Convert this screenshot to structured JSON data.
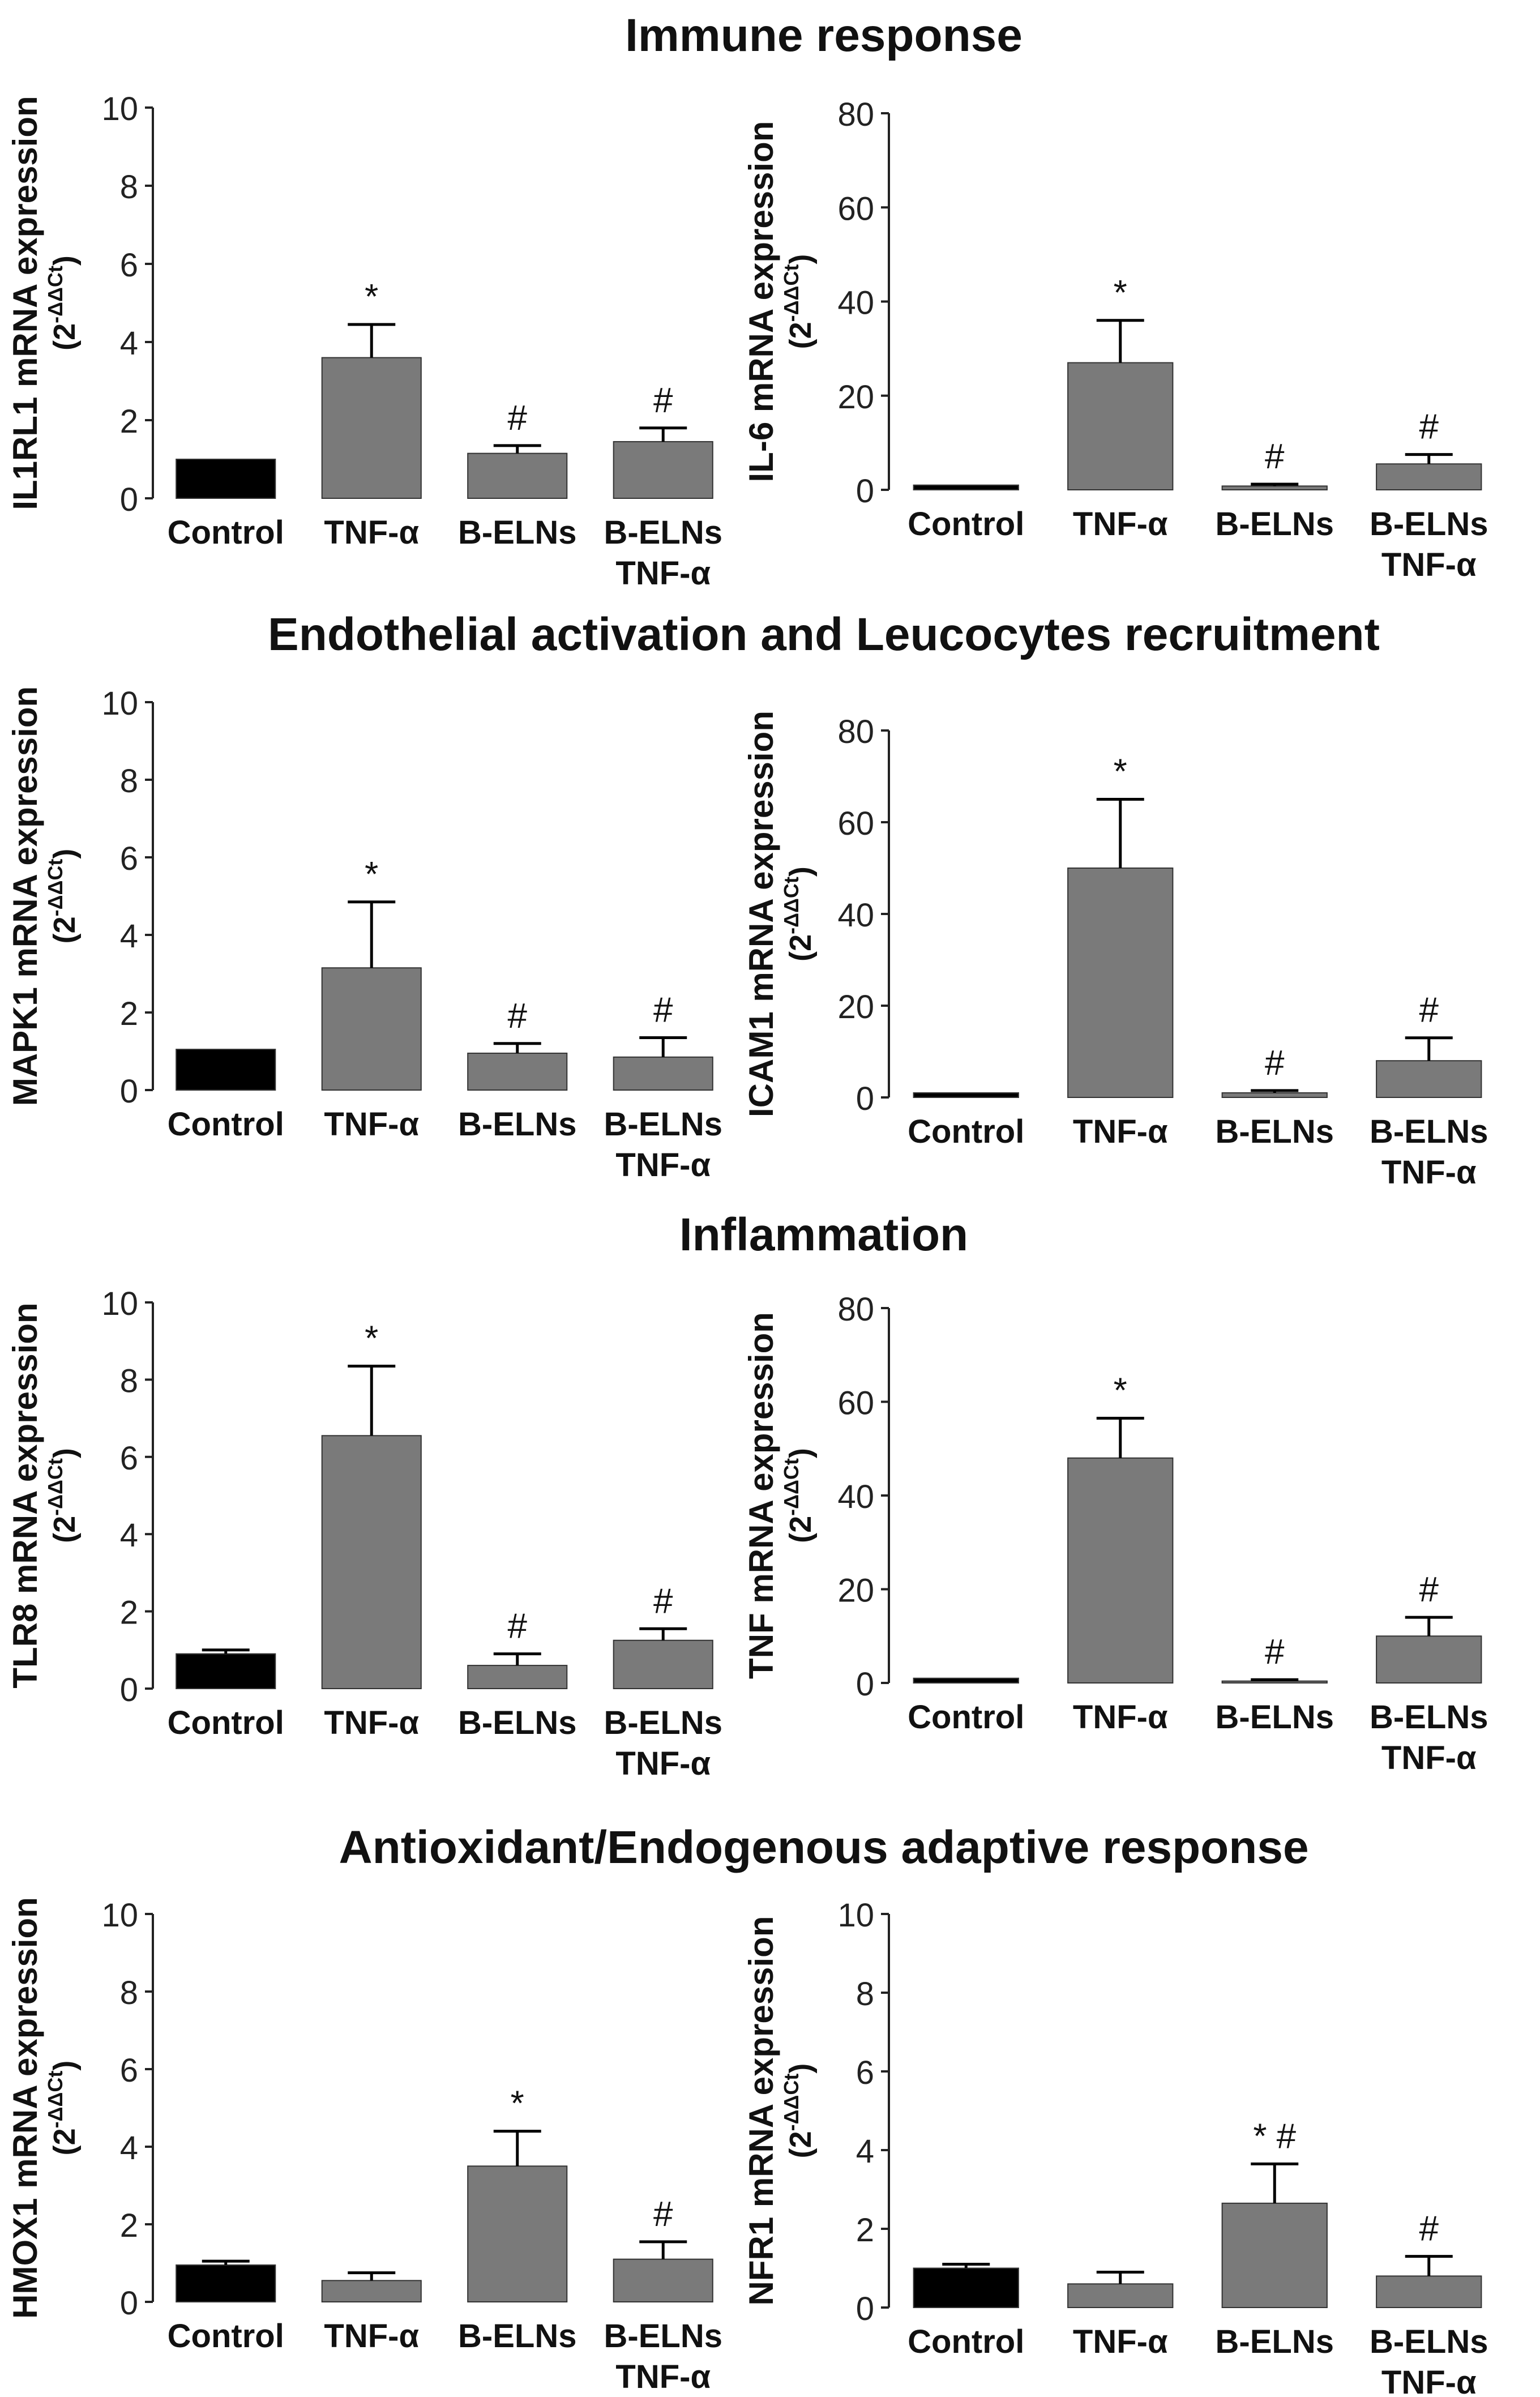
{
  "sections": [
    {
      "title": "Immune response"
    },
    {
      "title": "Endothelial activation and Leucocytes recruitment"
    },
    {
      "title": "Inflammation"
    },
    {
      "title": "Antioxidant/Endogenous adaptive response"
    }
  ],
  "colors": {
    "control": "#000000",
    "treated": "#7a7a7a",
    "error": "#000000"
  },
  "chart_data": [
    {
      "type": "bar",
      "section": "Immune response",
      "ylabel": "IL1RL1 mRNA expression",
      "ylabel_unit": "(2^-ΔΔCt)",
      "categories": [
        "Control",
        "TNF-α",
        "B-ELNs",
        "B-ELNs|TNF-α"
      ],
      "values": [
        1.0,
        3.6,
        1.15,
        1.45
      ],
      "errors": [
        0.0,
        0.85,
        0.2,
        0.35
      ],
      "annotations": [
        "",
        "*",
        "#",
        "#"
      ],
      "ylim": [
        0,
        10
      ],
      "yticks": [
        0,
        2,
        4,
        6,
        8,
        10
      ]
    },
    {
      "type": "bar",
      "section": "Immune response",
      "ylabel": "IL-6 mRNA expression",
      "ylabel_unit": "(2^-ΔΔCt)",
      "categories": [
        "Control",
        "TNF-α",
        "B-ELNs",
        "B-ELNs|TNF-α"
      ],
      "values": [
        1.0,
        27,
        0.8,
        5.5
      ],
      "errors": [
        0.0,
        9,
        0.4,
        2.0
      ],
      "annotations": [
        "",
        "*",
        "#",
        "#"
      ],
      "ylim": [
        0,
        80
      ],
      "yticks": [
        0,
        20,
        40,
        60,
        80
      ]
    },
    {
      "type": "bar",
      "section": "Endothelial activation and Leucocytes recruitment",
      "ylabel": "MAPK1 mRNA expression",
      "ylabel_unit": "(2^-ΔΔCt)",
      "categories": [
        "Control",
        "TNF-α",
        "B-ELNs",
        "B-ELNs|TNF-α"
      ],
      "values": [
        1.05,
        3.15,
        0.95,
        0.85
      ],
      "errors": [
        0.0,
        1.7,
        0.25,
        0.5
      ],
      "annotations": [
        "",
        "*",
        "#",
        "#"
      ],
      "ylim": [
        0,
        10
      ],
      "yticks": [
        0,
        2,
        4,
        6,
        8,
        10
      ]
    },
    {
      "type": "bar",
      "section": "Endothelial activation and Leucocytes recruitment",
      "ylabel": "ICAM1 mRNA expression",
      "ylabel_unit": "(2^-ΔΔCt)",
      "categories": [
        "Control",
        "TNF-α",
        "B-ELNs",
        "B-ELNs|TNF-α"
      ],
      "values": [
        1.0,
        50,
        1.0,
        8
      ],
      "errors": [
        0.0,
        15,
        0.5,
        5
      ],
      "annotations": [
        "",
        "*",
        "#",
        "#"
      ],
      "ylim": [
        0,
        80
      ],
      "yticks": [
        0,
        20,
        40,
        60,
        80
      ]
    },
    {
      "type": "bar",
      "section": "Inflammation",
      "ylabel": "TLR8 mRNA expression",
      "ylabel_unit": "(2^-ΔΔCt)",
      "categories": [
        "Control",
        "TNF-α",
        "B-ELNs",
        "B-ELNs|TNF-α"
      ],
      "values": [
        0.9,
        6.55,
        0.6,
        1.25
      ],
      "errors": [
        0.1,
        1.8,
        0.3,
        0.3
      ],
      "annotations": [
        "",
        "*",
        "#",
        "#"
      ],
      "ylim": [
        0,
        10
      ],
      "yticks": [
        0,
        2,
        4,
        6,
        8,
        10
      ]
    },
    {
      "type": "bar",
      "section": "Inflammation",
      "ylabel": "TNF mRNA expression",
      "ylabel_unit": "(2^-ΔΔCt)",
      "categories": [
        "Control",
        "TNF-α",
        "B-ELNs",
        "B-ELNs|TNF-α"
      ],
      "values": [
        1.0,
        48,
        0.4,
        10
      ],
      "errors": [
        0.0,
        8.5,
        0.3,
        4
      ],
      "annotations": [
        "",
        "*",
        "#",
        "#"
      ],
      "ylim": [
        0,
        80
      ],
      "yticks": [
        0,
        20,
        40,
        60,
        80
      ]
    },
    {
      "type": "bar",
      "section": "Antioxidant/Endogenous adaptive response",
      "ylabel": "HMOX1 mRNA expression",
      "ylabel_unit": "(2^-ΔΔCt)",
      "categories": [
        "Control",
        "TNF-α",
        "B-ELNs",
        "B-ELNs|TNF-α"
      ],
      "values": [
        0.95,
        0.55,
        3.5,
        1.1
      ],
      "errors": [
        0.1,
        0.2,
        0.9,
        0.45
      ],
      "annotations": [
        "",
        "",
        "*",
        "#"
      ],
      "ylim": [
        0,
        10
      ],
      "yticks": [
        0,
        2,
        4,
        6,
        8,
        10
      ]
    },
    {
      "type": "bar",
      "section": "Antioxidant/Endogenous adaptive response",
      "ylabel": "NFR1 mRNA expression",
      "ylabel_unit": "(2^-ΔΔCt)",
      "categories": [
        "Control",
        "TNF-α",
        "B-ELNs",
        "B-ELNs|TNF-α"
      ],
      "values": [
        1.0,
        0.6,
        2.65,
        0.8
      ],
      "errors": [
        0.1,
        0.3,
        1.0,
        0.5
      ],
      "annotations": [
        "",
        "",
        "* #",
        "#"
      ],
      "ylim": [
        0,
        10
      ],
      "yticks": [
        0,
        2,
        4,
        6,
        8,
        10
      ]
    }
  ]
}
